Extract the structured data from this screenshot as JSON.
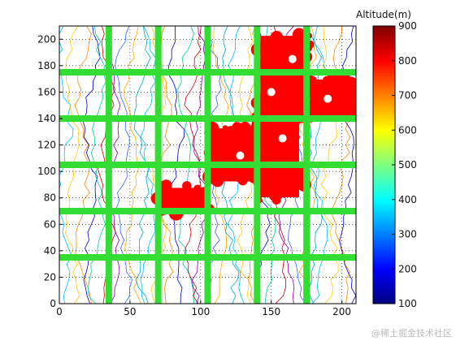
{
  "chart_data": {
    "type": "heatmap",
    "xlim": [
      0,
      210
    ],
    "ylim": [
      0,
      210
    ],
    "x_ticks": [
      0,
      50,
      100,
      150,
      200
    ],
    "y_ticks": [
      0,
      20,
      40,
      60,
      80,
      100,
      120,
      140,
      160,
      180,
      200
    ],
    "grid": "dotted",
    "grid_lines_x": [
      35,
      70,
      105,
      140,
      175
    ],
    "grid_lines_y": [
      35,
      70,
      105,
      140,
      175
    ],
    "grid_line_color": "#33dd33",
    "region_color": "#ff0000",
    "highlighted_regions": [
      {
        "x": [
          68,
          106
        ],
        "y": [
          68,
          90
        ]
      },
      {
        "x": [
          105,
          141
        ],
        "y": [
          105,
          135
        ]
      },
      {
        "x": [
          105,
          178
        ],
        "y": [
          90,
          105
        ]
      },
      {
        "x": [
          140,
          172
        ],
        "y": [
          78,
          150
        ]
      },
      {
        "x": [
          140,
          178
        ],
        "y": [
          140,
          205
        ]
      },
      {
        "x": [
          175,
          212
        ],
        "y": [
          140,
          172
        ]
      }
    ],
    "colorbar": {
      "title": "Altitude(m)",
      "range": [
        100,
        900
      ],
      "ticks": [
        100,
        200,
        300,
        400,
        500,
        600,
        700,
        800,
        900
      ],
      "colormap": "jet"
    }
  },
  "watermark": "@稀土掘金技术社区"
}
